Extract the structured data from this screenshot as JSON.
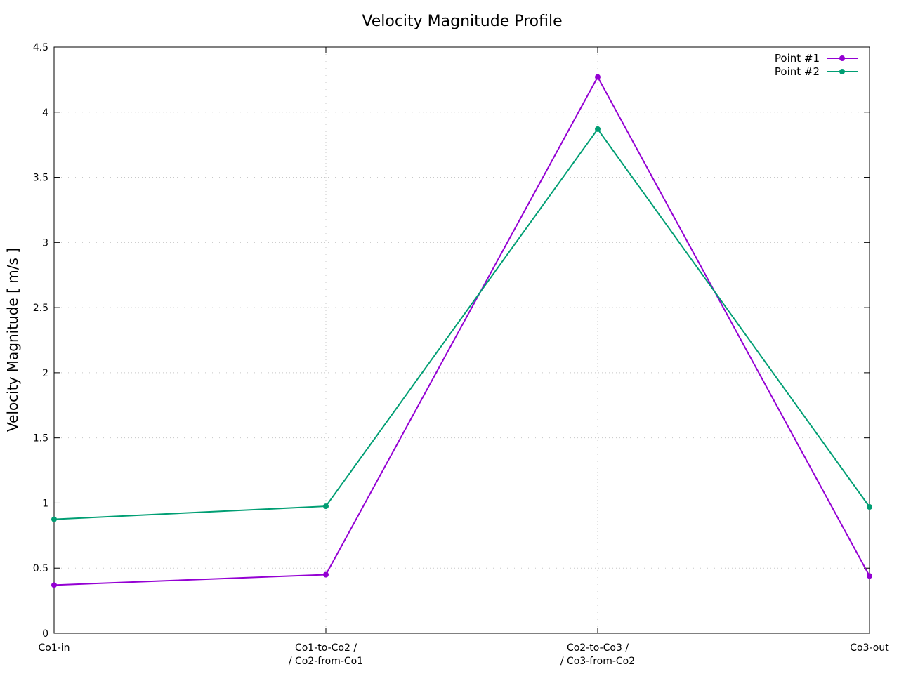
{
  "chart_data": {
    "type": "line",
    "title": "Velocity Magnitude Profile",
    "xlabel": "",
    "ylabel": "Velocity Magnitude [ m/s ]",
    "categories": [
      [
        "Co1-in"
      ],
      [
        "Co1-to-Co2 /",
        "/ Co2-from-Co1"
      ],
      [
        "Co2-to-Co3 /",
        "/ Co3-from-Co2"
      ],
      [
        "Co3-out"
      ]
    ],
    "ylim": [
      0,
      4.5
    ],
    "yticks": [
      "0",
      "0.5",
      "1",
      "1.5",
      "2",
      "2.5",
      "3",
      "3.5",
      "4",
      "4.5"
    ],
    "grid": true,
    "legend_position": "top-right",
    "series": [
      {
        "name": "Point #1",
        "color": "#9400d3",
        "values": [
          0.37,
          0.45,
          4.27,
          0.44
        ]
      },
      {
        "name": "Point #2",
        "color": "#009e73",
        "values": [
          0.875,
          0.975,
          3.87,
          0.97
        ]
      }
    ]
  }
}
